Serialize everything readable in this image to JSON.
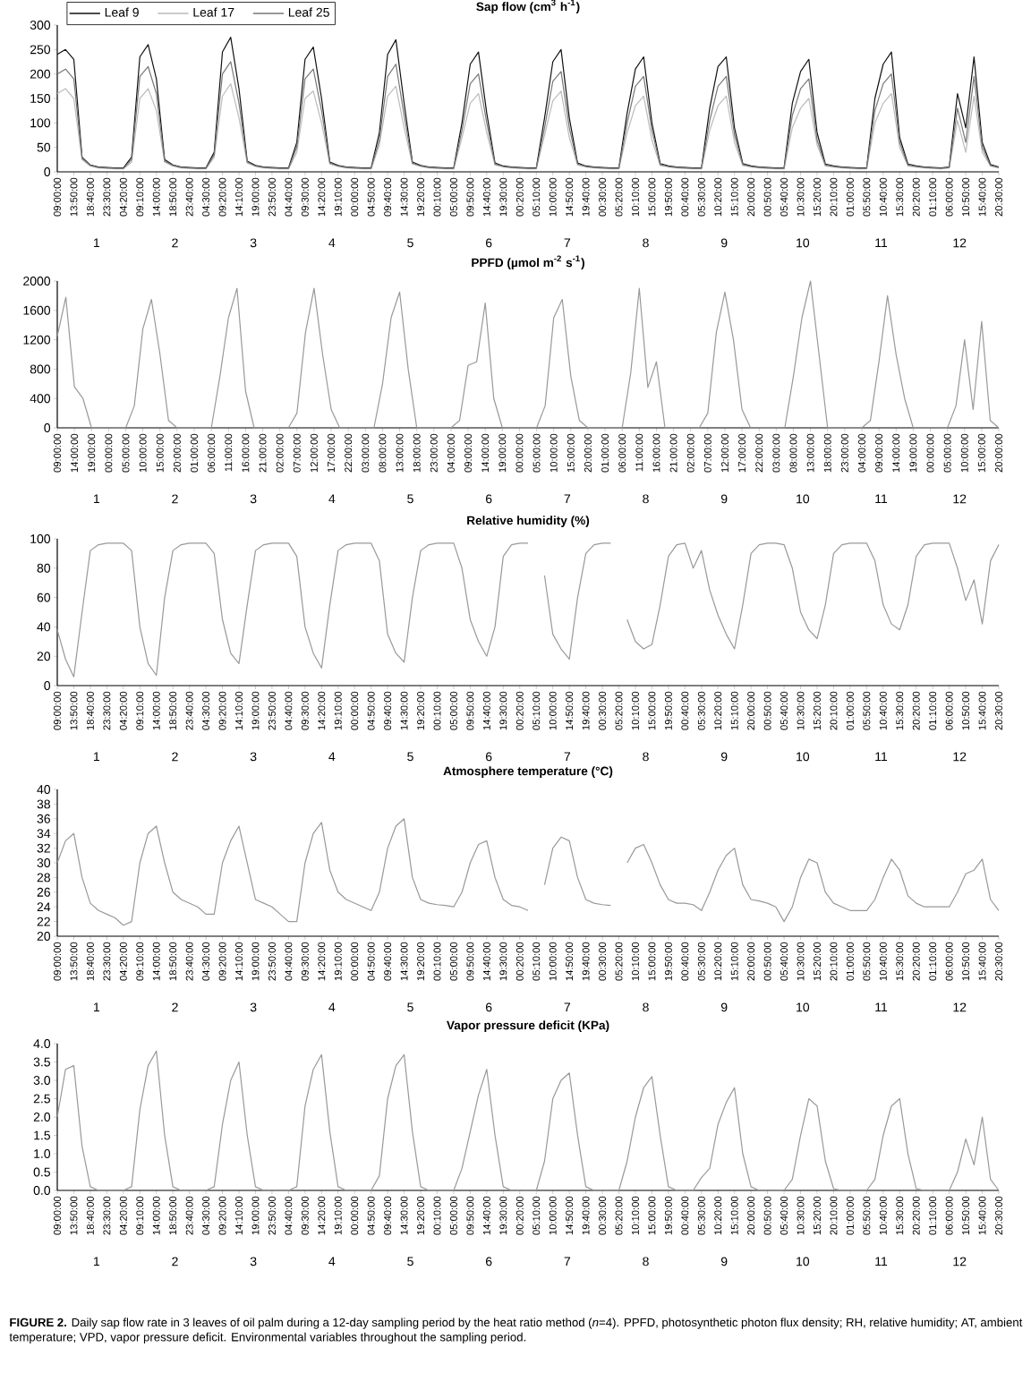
{
  "chart_data": [
    {
      "type": "line",
      "title": "Sap flow (cm$^{3}$ h$^{-1}$)",
      "legend": "top left",
      "categories": [
        "09:00:00",
        null,
        "13:50:00",
        null,
        "18:40:00",
        null,
        "23:30:00",
        null,
        "04:20:00",
        null,
        "09:10:00",
        null,
        "14:00:00",
        null,
        "18:50:00",
        null,
        "23:40:00",
        null,
        "04:30:00",
        null,
        "09:20:00",
        null,
        "14:10:00",
        null,
        "19:00:00",
        null,
        "23:50:00",
        null,
        "04:40:00",
        null,
        "09:30:00",
        null,
        "14:20:00",
        null,
        "19:10:00",
        null,
        "00:00:00",
        null,
        "04:50:00",
        null,
        "09:40:00",
        null,
        "14:30:00",
        null,
        "19:20:00",
        null,
        "00:10:00",
        null,
        "05:00:00",
        null,
        "09:50:00",
        null,
        "14:40:00",
        null,
        "19:30:00",
        null,
        "00:20:00",
        null,
        "05:10:00",
        null,
        "10:00:00",
        null,
        "14:50:00",
        null,
        "19:40:00",
        null,
        "00:30:00",
        null,
        "05:20:00",
        null,
        "10:10:00",
        null,
        "15:00:00",
        null,
        "19:50:00",
        null,
        "00:40:00",
        null,
        "05:30:00",
        null,
        "10:20:00",
        null,
        "15:10:00",
        null,
        "20:00:00",
        null,
        "00:50:00",
        null,
        "05:40:00",
        null,
        "10:30:00",
        null,
        "15:20:00",
        null,
        "20:10:00",
        null,
        "01:00:00",
        null,
        "05:50:00",
        null,
        "10:40:00",
        null,
        "15:30:00",
        null,
        "20:20:00",
        null,
        "01:10:00",
        null,
        "06:00:00",
        null,
        "10:50:00",
        null,
        "15:40:00",
        null,
        "20:30:00"
      ],
      "series": [
        {
          "name": "Leaf 9",
          "color": "#111111",
          "values": [
            240,
            250,
            230,
            30,
            14,
            10,
            9,
            8,
            8,
            30,
            235,
            260,
            190,
            25,
            14,
            10,
            9,
            8,
            8,
            40,
            245,
            275,
            170,
            22,
            13,
            10,
            9,
            8,
            8,
            60,
            230,
            255,
            150,
            20,
            13,
            10,
            9,
            8,
            8,
            80,
            240,
            270,
            140,
            20,
            13,
            10,
            9,
            8,
            8,
            100,
            220,
            245,
            120,
            18,
            12,
            10,
            9,
            8,
            8,
            110,
            225,
            250,
            110,
            18,
            12,
            10,
            9,
            8,
            8,
            120,
            210,
            235,
            100,
            17,
            12,
            10,
            9,
            8,
            8,
            130,
            215,
            235,
            90,
            17,
            12,
            10,
            9,
            8,
            8,
            140,
            205,
            230,
            80,
            16,
            12,
            10,
            9,
            8,
            8,
            150,
            220,
            245,
            70,
            16,
            12,
            10,
            9,
            8,
            10,
            160,
            90,
            235,
            60,
            15,
            10
          ]
        },
        {
          "name": "Leaf 17",
          "color": "#bbbbbb",
          "values": [
            160,
            170,
            150,
            25,
            12,
            8,
            7,
            6,
            6,
            20,
            150,
            170,
            125,
            20,
            12,
            8,
            7,
            6,
            6,
            30,
            155,
            180,
            110,
            18,
            11,
            8,
            7,
            6,
            6,
            40,
            150,
            165,
            100,
            16,
            11,
            8,
            7,
            6,
            6,
            55,
            155,
            175,
            90,
            16,
            11,
            8,
            7,
            6,
            6,
            70,
            140,
            160,
            80,
            14,
            10,
            8,
            7,
            6,
            6,
            75,
            145,
            165,
            70,
            14,
            10,
            8,
            7,
            6,
            6,
            80,
            135,
            155,
            65,
            13,
            10,
            8,
            7,
            6,
            6,
            85,
            135,
            155,
            60,
            13,
            10,
            8,
            7,
            6,
            6,
            90,
            130,
            150,
            55,
            12,
            10,
            8,
            7,
            6,
            6,
            100,
            140,
            160,
            50,
            12,
            10,
            8,
            7,
            6,
            8,
            105,
            40,
            155,
            40,
            12,
            8
          ]
        },
        {
          "name": "Leaf 25",
          "color": "#777777",
          "values": [
            200,
            210,
            190,
            28,
            13,
            9,
            8,
            7,
            7,
            25,
            195,
            215,
            160,
            22,
            13,
            9,
            8,
            7,
            7,
            35,
            200,
            225,
            140,
            20,
            12,
            9,
            8,
            7,
            7,
            50,
            190,
            210,
            125,
            18,
            12,
            9,
            8,
            7,
            7,
            65,
            195,
            220,
            115,
            18,
            12,
            9,
            8,
            7,
            7,
            85,
            180,
            200,
            100,
            16,
            11,
            9,
            8,
            7,
            7,
            90,
            185,
            205,
            90,
            16,
            11,
            9,
            8,
            7,
            7,
            100,
            175,
            195,
            85,
            15,
            11,
            9,
            8,
            7,
            7,
            105,
            175,
            195,
            75,
            15,
            11,
            9,
            8,
            7,
            7,
            115,
            170,
            190,
            65,
            14,
            11,
            9,
            8,
            7,
            7,
            125,
            180,
            200,
            60,
            14,
            11,
            9,
            8,
            7,
            9,
            130,
            60,
            195,
            50,
            13,
            9
          ]
        }
      ],
      "ylim": [
        0,
        300
      ],
      "yticks": [
        0,
        50,
        100,
        150,
        200,
        250,
        300
      ],
      "annotations": [
        "1",
        "2",
        "3",
        "4",
        "5",
        "6",
        "7",
        "8",
        "9",
        "10",
        "11",
        "12"
      ]
    },
    {
      "type": "line",
      "title": "PPFD (µmol m$^{-2}$ s$^{-1}$)",
      "categories": [
        "09:00:00",
        null,
        "14:00:00",
        null,
        "19:00:00",
        null,
        "00:00:00",
        null,
        "05:00:00",
        null,
        "10:00:00",
        null,
        "15:00:00",
        null,
        "20:00:00",
        null,
        "01:00:00",
        null,
        "06:00:00",
        null,
        "11:00:00",
        null,
        "16:00:00",
        null,
        "21:00:00",
        null,
        "02:00:00",
        null,
        "07:00:00",
        null,
        "12:00:00",
        null,
        "17:00:00",
        null,
        "22:00:00",
        null,
        "03:00:00",
        null,
        "08:00:00",
        null,
        "13:00:00",
        null,
        "18:00:00",
        null,
        "23:00:00",
        null,
        "04:00:00",
        null,
        "09:00:00",
        null,
        "14:00:00",
        null,
        "19:00:00",
        null,
        "00:00:00",
        null,
        "05:00:00",
        null,
        "10:00:00",
        null,
        "15:00:00",
        null,
        "20:00:00",
        null,
        "01:00:00",
        null,
        "06:00:00",
        null,
        "11:00:00",
        null,
        "16:00:00",
        null,
        "21:00:00",
        null,
        "02:00:00",
        null,
        "07:00:00",
        null,
        "12:00:00",
        null,
        "17:00:00",
        null,
        "22:00:00",
        null,
        "03:00:00",
        null,
        "08:00:00",
        null,
        "13:00:00",
        null,
        "18:00:00",
        null,
        "23:00:00",
        null,
        "04:00:00",
        null,
        "09:00:00",
        null,
        "14:00:00",
        null,
        "19:00:00",
        null,
        "00:00:00",
        null,
        "05:00:00",
        null,
        "10:00:00",
        null,
        "15:00:00",
        null,
        "20:00:00"
      ],
      "series": [
        {
          "color": "#999999",
          "values": [
            1250,
            1780,
            560,
            400,
            0,
            0,
            0,
            0,
            0,
            300,
            1350,
            1750,
            1000,
            100,
            0,
            0,
            0,
            0,
            0,
            700,
            1500,
            1900,
            500,
            0,
            0,
            0,
            0,
            0,
            200,
            1300,
            1900,
            1000,
            250,
            0,
            0,
            0,
            0,
            0,
            600,
            1500,
            1850,
            800,
            0,
            0,
            0,
            0,
            0,
            100,
            850,
            900,
            1700,
            400,
            0,
            0,
            0,
            0,
            0,
            300,
            1500,
            1750,
            700,
            100,
            0,
            0,
            0,
            0,
            0,
            750,
            1900,
            550,
            900,
            0,
            0,
            0,
            0,
            0,
            200,
            1300,
            1850,
            1200,
            250,
            0,
            0,
            0,
            0,
            0,
            700,
            1500,
            2000,
            1000,
            0,
            0,
            0,
            0,
            0,
            100,
            900,
            1800,
            1000,
            400,
            0,
            0,
            0,
            0,
            0,
            300,
            1200,
            250,
            1450,
            100,
            0
          ]
        }
      ],
      "ylim": [
        0,
        2000
      ],
      "yticks": [
        0,
        400,
        800,
        1200,
        1600,
        2000
      ],
      "annotations": [
        "1",
        "2",
        "3",
        "4",
        "5",
        "6",
        "7",
        "8",
        "9",
        "10",
        "11",
        "12"
      ]
    },
    {
      "type": "line",
      "title": "Relative humidity (%)",
      "categories": [
        "09:00:00",
        null,
        "13:50:00",
        null,
        "18:40:00",
        null,
        "23:30:00",
        null,
        "04:20:00",
        null,
        "09:10:00",
        null,
        "14:00:00",
        null,
        "18:50:00",
        null,
        "23:40:00",
        null,
        "04:30:00",
        null,
        "09:20:00",
        null,
        "14:10:00",
        null,
        "19:00:00",
        null,
        "23:50:00",
        null,
        "04:40:00",
        null,
        "09:30:00",
        null,
        "14:20:00",
        null,
        "19:10:00",
        null,
        "00:00:00",
        null,
        "04:50:00",
        null,
        "09:40:00",
        null,
        "14:30:00",
        null,
        "19:20:00",
        null,
        "00:10:00",
        null,
        "05:00:00",
        null,
        "09:50:00",
        null,
        "14:40:00",
        null,
        "19:30:00",
        null,
        "00:20:00",
        null,
        "05:10:00",
        null,
        "10:00:00",
        null,
        "14:50:00",
        null,
        "19:40:00",
        null,
        "00:30:00",
        null,
        "05:20:00",
        null,
        "10:10:00",
        null,
        "15:00:00",
        null,
        "19:50:00",
        null,
        "00:40:00",
        null,
        "05:30:00",
        null,
        "10:20:00",
        null,
        "15:10:00",
        null,
        "20:00:00",
        null,
        "00:50:00",
        null,
        "05:40:00",
        null,
        "10:30:00",
        null,
        "15:20:00",
        null,
        "20:10:00",
        null,
        "01:00:00",
        null,
        "05:50:00",
        null,
        "10:40:00",
        null,
        "15:30:00",
        null,
        "20:20:00",
        null,
        "01:10:00",
        null,
        "06:00:00",
        null,
        "10:50:00",
        null,
        "15:40:00",
        null,
        "20:30:00"
      ],
      "series": [
        {
          "color": "#999999",
          "values": [
            38,
            18,
            6,
            50,
            92,
            96,
            97,
            97,
            97,
            92,
            40,
            15,
            7,
            60,
            92,
            96,
            97,
            97,
            97,
            90,
            45,
            22,
            15,
            55,
            92,
            96,
            97,
            97,
            97,
            88,
            40,
            22,
            12,
            55,
            92,
            96,
            97,
            97,
            97,
            85,
            35,
            22,
            16,
            60,
            92,
            96,
            97,
            97,
            97,
            80,
            45,
            30,
            20,
            40,
            88,
            96,
            97,
            97,
            null,
            75,
            35,
            25,
            18,
            60,
            90,
            96,
            97,
            97,
            null,
            45,
            30,
            25,
            28,
            55,
            88,
            96,
            97,
            80,
            92,
            65,
            48,
            35,
            25,
            55,
            90,
            96,
            97,
            97,
            96,
            80,
            50,
            38,
            32,
            55,
            90,
            96,
            97,
            97,
            97,
            85,
            55,
            42,
            38,
            55,
            88,
            96,
            97,
            97,
            97,
            80,
            58,
            72,
            42,
            85,
            96
          ]
        }
      ],
      "ylim": [
        0,
        100
      ],
      "yticks": [
        0,
        20,
        40,
        60,
        80,
        100
      ],
      "annotations": [
        "1",
        "2",
        "3",
        "4",
        "5",
        "6",
        "7",
        "8",
        "9",
        "10",
        "11",
        "12"
      ]
    },
    {
      "type": "line",
      "title": "Atmosphere temperature (°C)",
      "categories": [
        "09:00:00",
        null,
        "13:50:00",
        null,
        "18:40:00",
        null,
        "23:30:00",
        null,
        "04:20:00",
        null,
        "09:10:00",
        null,
        "14:00:00",
        null,
        "18:50:00",
        null,
        "23:40:00",
        null,
        "04:30:00",
        null,
        "09:20:00",
        null,
        "14:10:00",
        null,
        "19:00:00",
        null,
        "23:50:00",
        null,
        "04:40:00",
        null,
        "09:30:00",
        null,
        "14:20:00",
        null,
        "19:10:00",
        null,
        "00:00:00",
        null,
        "04:50:00",
        null,
        "09:40:00",
        null,
        "14:30:00",
        null,
        "19:20:00",
        null,
        "00:10:00",
        null,
        "05:00:00",
        null,
        "09:50:00",
        null,
        "14:40:00",
        null,
        "19:30:00",
        null,
        "00:20:00",
        null,
        "05:10:00",
        null,
        "10:00:00",
        null,
        "14:50:00",
        null,
        "19:40:00",
        null,
        "00:30:00",
        null,
        "05:20:00",
        null,
        "10:10:00",
        null,
        "15:00:00",
        null,
        "19:50:00",
        null,
        "00:40:00",
        null,
        "05:30:00",
        null,
        "10:20:00",
        null,
        "15:10:00",
        null,
        "20:00:00",
        null,
        "00:50:00",
        null,
        "05:40:00",
        null,
        "10:30:00",
        null,
        "15:20:00",
        null,
        "20:10:00",
        null,
        "01:00:00",
        null,
        "05:50:00",
        null,
        "10:40:00",
        null,
        "15:30:00",
        null,
        "20:20:00",
        null,
        "01:10:00",
        null,
        "06:00:00",
        null,
        "10:50:00",
        null,
        "15:40:00",
        null,
        "20:30:00"
      ],
      "series": [
        {
          "color": "#999999",
          "values": [
            30,
            33,
            34,
            28,
            24.5,
            23.5,
            23,
            22.5,
            21.5,
            22,
            30,
            34,
            35,
            30,
            26,
            25,
            24.5,
            24,
            23,
            23,
            30,
            33,
            35,
            30,
            25,
            24.5,
            24,
            23,
            22,
            22,
            30,
            34,
            35.5,
            29,
            26,
            25,
            24.5,
            24,
            23.5,
            26,
            32,
            35,
            36,
            28,
            25,
            24.5,
            24.3,
            24.2,
            24,
            26,
            30,
            32.5,
            33,
            28,
            25,
            24.2,
            24,
            23.5,
            null,
            27,
            32,
            33.5,
            33,
            28,
            25,
            24.5,
            24.3,
            24.2,
            null,
            30,
            32,
            32.5,
            30,
            27,
            25,
            24.5,
            24.5,
            24.3,
            23.5,
            26,
            29,
            31,
            32,
            27,
            25,
            24.8,
            24.5,
            24,
            22,
            24,
            28,
            30.5,
            30,
            26,
            24.5,
            24,
            23.5,
            23.5,
            23.5,
            25,
            28,
            30.5,
            29,
            25.5,
            24.5,
            24,
            24,
            24,
            24,
            26,
            28.5,
            29,
            30.5,
            25,
            23.5
          ]
        }
      ],
      "ylim": [
        20,
        40
      ],
      "yticks": [
        20,
        22,
        24,
        26,
        28,
        30,
        32,
        34,
        36,
        38,
        40
      ],
      "annotations": [
        "1",
        "2",
        "3",
        "4",
        "5",
        "6",
        "7",
        "8",
        "9",
        "10",
        "11",
        "12"
      ]
    },
    {
      "type": "line",
      "title": "Vapor pressure deficit (KPa)",
      "categories": [
        "09:00:00",
        null,
        "13:50:00",
        null,
        "18:40:00",
        null,
        "23:30:00",
        null,
        "04:20:00",
        null,
        "09:10:00",
        null,
        "14:00:00",
        null,
        "18:50:00",
        null,
        "23:40:00",
        null,
        "04:30:00",
        null,
        "09:20:00",
        null,
        "14:10:00",
        null,
        "19:00:00",
        null,
        "23:50:00",
        null,
        "04:40:00",
        null,
        "09:30:00",
        null,
        "14:20:00",
        null,
        "19:10:00",
        null,
        "00:00:00",
        null,
        "04:50:00",
        null,
        "09:40:00",
        null,
        "14:30:00",
        null,
        "19:20:00",
        null,
        "00:10:00",
        null,
        "05:00:00",
        null,
        "09:50:00",
        null,
        "14:40:00",
        null,
        "19:30:00",
        null,
        "00:20:00",
        null,
        "05:10:00",
        null,
        "10:00:00",
        null,
        "14:50:00",
        null,
        "19:40:00",
        null,
        "00:30:00",
        null,
        "05:20:00",
        null,
        "10:10:00",
        null,
        "15:00:00",
        null,
        "19:50:00",
        null,
        "00:40:00",
        null,
        "05:30:00",
        null,
        "10:20:00",
        null,
        "15:10:00",
        null,
        "20:00:00",
        null,
        "00:50:00",
        null,
        "05:40:00",
        null,
        "10:30:00",
        null,
        "15:20:00",
        null,
        "20:10:00",
        null,
        "01:00:00",
        null,
        "05:50:00",
        null,
        "10:40:00",
        null,
        "15:30:00",
        null,
        "20:20:00",
        null,
        "01:10:00",
        null,
        "06:00:00",
        null,
        "10:50:00",
        null,
        "15:40:00",
        null,
        "20:30:00"
      ],
      "series": [
        {
          "color": "#999999",
          "values": [
            2.0,
            3.3,
            3.4,
            1.2,
            0.1,
            0,
            0,
            0,
            0,
            0.1,
            2.2,
            3.4,
            3.8,
            1.5,
            0.1,
            0,
            0,
            0,
            0,
            0.1,
            1.8,
            3.0,
            3.5,
            1.5,
            0.1,
            0,
            0,
            0,
            0,
            0.1,
            2.3,
            3.3,
            3.7,
            1.6,
            0.1,
            0,
            0,
            0,
            0,
            0.4,
            2.5,
            3.4,
            3.7,
            1.6,
            0.1,
            0,
            0,
            0,
            0,
            0.6,
            1.6,
            2.6,
            3.3,
            1.5,
            0.1,
            0,
            0,
            0,
            0,
            0.8,
            2.5,
            3.0,
            3.2,
            1.5,
            0.1,
            0,
            0,
            0,
            0,
            0.8,
            2.0,
            2.8,
            3.1,
            1.5,
            0.1,
            0,
            0,
            0,
            0.35,
            0.6,
            1.8,
            2.4,
            2.8,
            1.0,
            0.1,
            0,
            0,
            0,
            0,
            0.3,
            1.5,
            2.5,
            2.3,
            0.8,
            0.05,
            0,
            0,
            0,
            0,
            0.3,
            1.5,
            2.3,
            2.5,
            1.0,
            0.05,
            0,
            0,
            0,
            0,
            0.5,
            1.4,
            0.7,
            2.0,
            0.3,
            0
          ]
        }
      ],
      "ylim": [
        0,
        4
      ],
      "yticks": [
        {
          "value": 0,
          "label": "0.0"
        },
        {
          "value": 0.5,
          "label": "0.5"
        },
        {
          "value": 1,
          "label": "1.0"
        },
        {
          "value": 1.5,
          "label": "1.5"
        },
        {
          "value": 2,
          "label": "2.0"
        },
        {
          "value": 2.5,
          "label": "2.5"
        },
        {
          "value": 3,
          "label": "3.0"
        },
        {
          "value": 3.5,
          "label": "3.5"
        },
        {
          "value": 4,
          "label": "4.0"
        }
      ],
      "annotations": [
        "1",
        "2",
        "3",
        "4",
        "5",
        "6",
        "7",
        "8",
        "9",
        "10",
        "11",
        "12"
      ]
    },
    {
      "type": "other",
      "annotations": [
        "**FIGURE 2.** Daily sap flow rate in 3 leaves of oil palm during a 12-day sampling period by the heat ratio method (*n*=4). PPFD, photosynthetic photon flux density; RH, relative humidity; AT, ambient temperature; VPD, vapor pressure deficit. Environmental variables throughout the sampling period."
      ]
    }
  ]
}
